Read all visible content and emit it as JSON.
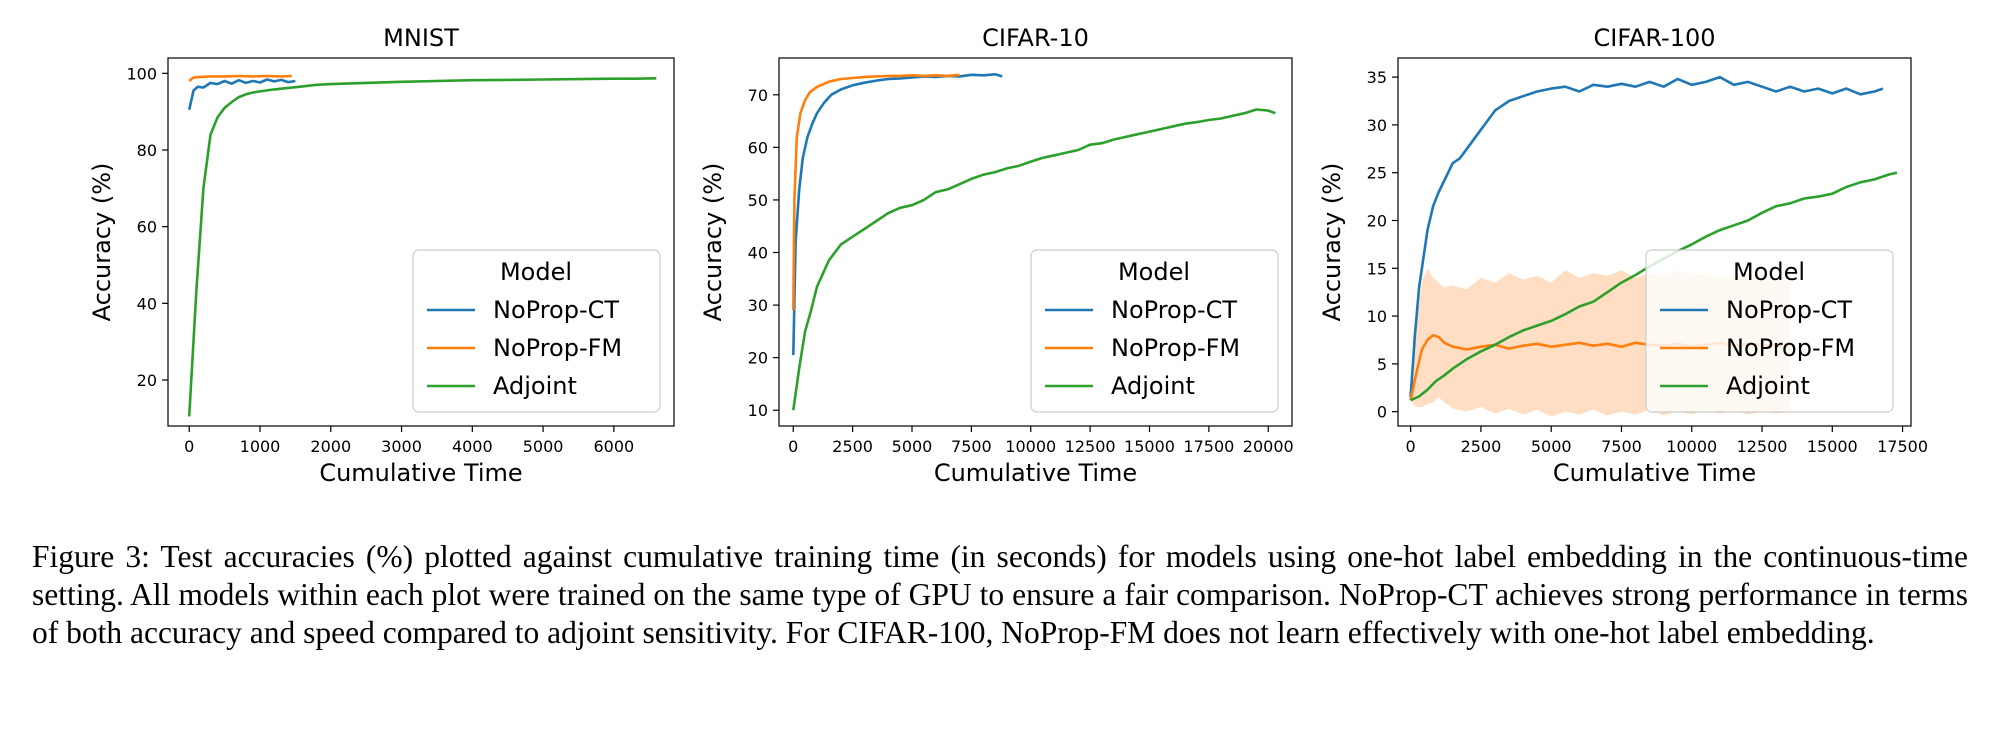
{
  "figure": {
    "caption_label": "Figure 3:",
    "caption_text": "Test accuracies (%) plotted against cumulative training time (in seconds) for models using one-hot label embedding in the continuous-time setting. All models within each plot were trained on the same type of GPU to ensure a fair comparison. NoProp-CT achieves strong performance in terms of both accuracy and speed compared to adjoint sensitivity. For CIFAR-100, NoProp-FM does not learn effectively with one-hot label embedding."
  },
  "colors": {
    "ct": "#1f77b4",
    "fm": "#ff7f0e",
    "adj": "#2ca02c",
    "fm_band": "#ffd8b8",
    "ct_band": "#b7d6ee",
    "adj_band": "#a8dca8"
  },
  "chart_data": [
    {
      "type": "line",
      "title": "MNIST",
      "xlabel": "Cumulative Time",
      "ylabel": "Accuracy (%)",
      "xlim": [
        -300,
        6850
      ],
      "ylim": [
        8,
        104
      ],
      "xticks": [
        0,
        1000,
        2000,
        3000,
        4000,
        5000,
        6000
      ],
      "xtick_labels": [
        "0",
        "1000",
        "2000",
        "3000",
        "4000",
        "5000",
        "6000"
      ],
      "yticks": [
        20,
        40,
        60,
        80,
        100
      ],
      "ytick_labels": [
        "20",
        "40",
        "60",
        "80",
        "100"
      ],
      "legend": {
        "title": "Model",
        "position": "lower-right",
        "entries": [
          "NoProp-CT",
          "NoProp-FM",
          "Adjoint"
        ]
      },
      "series": [
        {
          "name": "NoProp-CT",
          "color": "ct",
          "x": [
            0,
            60,
            120,
            200,
            300,
            400,
            500,
            600,
            700,
            800,
            900,
            1000,
            1100,
            1200,
            1300,
            1400,
            1500
          ],
          "y": [
            90.5,
            95.5,
            96.5,
            96.3,
            97.5,
            97.2,
            98.0,
            97.3,
            98.2,
            97.5,
            98.0,
            97.6,
            98.4,
            97.9,
            98.3,
            97.7,
            98.0
          ]
        },
        {
          "name": "NoProp-FM",
          "color": "fm",
          "x": [
            0,
            50,
            100,
            200,
            300,
            500,
            700,
            900,
            1100,
            1300,
            1450
          ],
          "y": [
            98.0,
            98.8,
            99.0,
            99.1,
            99.2,
            99.2,
            99.3,
            99.2,
            99.3,
            99.2,
            99.3
          ]
        },
        {
          "name": "Adjoint",
          "color": "adj",
          "x": [
            0,
            100,
            200,
            300,
            400,
            500,
            600,
            700,
            800,
            900,
            1000,
            1200,
            1400,
            1600,
            1800,
            2000,
            2500,
            3000,
            3500,
            4000,
            4500,
            5000,
            5500,
            6000,
            6300,
            6600
          ],
          "y": [
            10.5,
            43,
            70,
            84,
            88.5,
            91,
            92.5,
            93.8,
            94.5,
            95,
            95.3,
            95.8,
            96.2,
            96.6,
            97,
            97.2,
            97.5,
            97.8,
            98,
            98.2,
            98.3,
            98.4,
            98.5,
            98.6,
            98.6,
            98.7
          ]
        }
      ]
    },
    {
      "type": "line",
      "title": "CIFAR-10",
      "xlabel": "Cumulative Time",
      "ylabel": "Accuracy (%)",
      "xlim": [
        -600,
        21000
      ],
      "ylim": [
        7,
        77
      ],
      "xticks": [
        0,
        2500,
        5000,
        7500,
        10000,
        12500,
        15000,
        17500,
        20000
      ],
      "xtick_labels": [
        "0",
        "2500",
        "5000",
        "7500",
        "10000",
        "12500",
        "15000",
        "17500",
        "20000"
      ],
      "yticks": [
        10,
        20,
        30,
        40,
        50,
        60,
        70
      ],
      "ytick_labels": [
        "10",
        "20",
        "30",
        "40",
        "50",
        "60",
        "70"
      ],
      "legend": {
        "title": "Model",
        "position": "lower-right",
        "entries": [
          "NoProp-CT",
          "NoProp-FM",
          "Adjoint"
        ]
      },
      "series": [
        {
          "name": "NoProp-CT",
          "color": "ct",
          "x": [
            0,
            100,
            250,
            400,
            600,
            800,
            1000,
            1300,
            1600,
            2000,
            2500,
            3000,
            3500,
            4000,
            4500,
            5000,
            5500,
            6000,
            6500,
            7000,
            7500,
            8000,
            8500,
            8800
          ],
          "y": [
            20.5,
            42,
            52,
            58,
            62,
            64.5,
            66.5,
            68.5,
            70,
            71,
            71.8,
            72.3,
            72.7,
            73,
            73.1,
            73.3,
            73.5,
            73.4,
            73.6,
            73.5,
            73.8,
            73.7,
            73.9,
            73.5
          ]
        },
        {
          "name": "NoProp-FM",
          "color": "fm",
          "x": [
            0,
            50,
            150,
            300,
            500,
            700,
            1000,
            1500,
            2000,
            2500,
            3000,
            3500,
            4000,
            4500,
            5000,
            5500,
            6000,
            6500,
            7000
          ],
          "y": [
            29,
            50,
            62,
            66.5,
            69,
            70.5,
            71.5,
            72.5,
            73,
            73.2,
            73.4,
            73.5,
            73.6,
            73.6,
            73.7,
            73.6,
            73.7,
            73.6,
            73.8
          ]
        },
        {
          "name": "Adjoint",
          "color": "adj",
          "x": [
            0,
            250,
            500,
            750,
            1000,
            1500,
            2000,
            2500,
            3000,
            3500,
            4000,
            4500,
            5000,
            5500,
            6000,
            6500,
            7000,
            7500,
            8000,
            8500,
            9000,
            9500,
            10000,
            10500,
            11000,
            11500,
            12000,
            12500,
            13000,
            13500,
            14000,
            14500,
            15000,
            15500,
            16000,
            16500,
            17000,
            17500,
            18000,
            18500,
            19000,
            19500,
            20000,
            20300
          ],
          "y": [
            10,
            18,
            25,
            29,
            33.5,
            38.5,
            41.5,
            43,
            44.5,
            46,
            47.5,
            48.5,
            49,
            50,
            51.5,
            52,
            53,
            54,
            54.8,
            55.3,
            56,
            56.5,
            57.3,
            58,
            58.5,
            59,
            59.5,
            60.5,
            60.8,
            61.5,
            62,
            62.5,
            63,
            63.5,
            64,
            64.5,
            64.8,
            65.2,
            65.5,
            66,
            66.5,
            67.2,
            67,
            66.5
          ]
        }
      ]
    },
    {
      "type": "line",
      "title": "CIFAR-100",
      "xlabel": "Cumulative Time",
      "ylabel": "Accuracy (%)",
      "xlim": [
        -450,
        17800
      ],
      "ylim": [
        -1.5,
        37
      ],
      "xticks": [
        0,
        2500,
        5000,
        7500,
        10000,
        12500,
        15000,
        17500
      ],
      "xtick_labels": [
        "0",
        "2500",
        "5000",
        "7500",
        "10000",
        "12500",
        "15000",
        "17500"
      ],
      "yticks": [
        0,
        5,
        10,
        15,
        20,
        25,
        30,
        35
      ],
      "ytick_labels": [
        "0",
        "5",
        "10",
        "15",
        "20",
        "25",
        "30",
        "35"
      ],
      "legend": {
        "title": "Model",
        "position": "center-right",
        "entries": [
          "NoProp-CT",
          "NoProp-FM",
          "Adjoint"
        ]
      },
      "series": [
        {
          "name": "NoProp-CT",
          "color": "ct",
          "x": [
            0,
            150,
            300,
            450,
            600,
            800,
            1000,
            1250,
            1500,
            1750,
            2000,
            2250,
            2500,
            2750,
            3000,
            3500,
            4000,
            4500,
            5000,
            5500,
            6000,
            6500,
            7000,
            7500,
            8000,
            8500,
            9000,
            9500,
            10000,
            10500,
            11000,
            11500,
            12000,
            12500,
            13000,
            13500,
            14000,
            14500,
            15000,
            15500,
            16000,
            16500,
            16800
          ],
          "y": [
            1.5,
            8,
            13,
            16,
            19,
            21.5,
            23,
            24.5,
            26,
            26.5,
            27.5,
            28.5,
            29.5,
            30.5,
            31.5,
            32.5,
            33,
            33.5,
            33.8,
            34,
            33.5,
            34.2,
            34,
            34.3,
            34,
            34.5,
            34,
            34.8,
            34.2,
            34.5,
            35,
            34.2,
            34.5,
            34,
            33.5,
            34,
            33.5,
            33.8,
            33.3,
            33.8,
            33.2,
            33.5,
            33.8
          ]
        },
        {
          "name": "NoProp-FM",
          "color": "fm",
          "x": [
            0,
            200,
            400,
            600,
            800,
            1000,
            1200,
            1500,
            2000,
            2500,
            3000,
            3500,
            4000,
            4500,
            5000,
            5500,
            6000,
            6500,
            7000,
            7500,
            8000,
            8500,
            9000,
            9500,
            10000,
            10500,
            11000,
            11500,
            12000,
            12500,
            13000,
            13500
          ],
          "y": [
            1.2,
            4,
            6.5,
            7.5,
            8,
            7.8,
            7.2,
            6.8,
            6.5,
            6.8,
            7,
            6.6,
            6.9,
            7.1,
            6.8,
            7,
            7.2,
            6.9,
            7.1,
            6.8,
            7.2,
            7,
            6.9,
            7.1,
            6.8,
            7,
            7.2,
            6.9,
            7.1,
            7,
            6.9,
            7
          ]
        },
        {
          "name": "Adjoint",
          "color": "adj",
          "x": [
            0,
            300,
            600,
            900,
            1200,
            1500,
            2000,
            2500,
            3000,
            3500,
            4000,
            4500,
            5000,
            5500,
            6000,
            6500,
            7000,
            7500,
            8000,
            8500,
            9000,
            9500,
            10000,
            10500,
            11000,
            11500,
            12000,
            12500,
            13000,
            13500,
            14000,
            14500,
            15000,
            15500,
            16000,
            16500,
            17000,
            17300
          ],
          "y": [
            1.2,
            1.6,
            2.3,
            3.2,
            3.8,
            4.5,
            5.5,
            6.3,
            7,
            7.8,
            8.5,
            9,
            9.5,
            10.2,
            11,
            11.5,
            12.5,
            13.5,
            14.3,
            15.2,
            16,
            16.8,
            17.5,
            18.3,
            19,
            19.5,
            20,
            20.8,
            21.5,
            21.8,
            22.3,
            22.5,
            22.8,
            23.5,
            24,
            24.3,
            24.8,
            25
          ]
        }
      ],
      "bands": [
        {
          "name": "NoProp-FM",
          "color": "fm_band",
          "x": [
            0,
            200,
            400,
            600,
            800,
            1000,
            1200,
            1500,
            2000,
            2500,
            3000,
            3500,
            4000,
            4500,
            5000,
            5500,
            6000,
            6500,
            7000,
            7500,
            8000,
            8500,
            9000,
            9500,
            10000,
            10500,
            11000,
            11500,
            12000,
            12500,
            13000,
            13500
          ],
          "upper": [
            1.3,
            9,
            13.5,
            15,
            14,
            13.5,
            13,
            13.2,
            12.8,
            14,
            13.5,
            14.5,
            13.8,
            14.2,
            13.5,
            14.8,
            14,
            14.5,
            14.2,
            14.8,
            14,
            14.5,
            14.2,
            14.8,
            14.2,
            14.6,
            14,
            14.3,
            14.5,
            14.2,
            13.8,
            14.3
          ],
          "lower": [
            1.1,
            0.5,
            0.5,
            0.8,
            1,
            1.5,
            1,
            0.3,
            0,
            0.5,
            -0.2,
            0.3,
            -0.3,
            0.2,
            -0.5,
            0,
            -0.3,
            0.2,
            -0.4,
            0,
            -0.3,
            0.2,
            -0.4,
            0,
            -0.3,
            0.2,
            -0.2,
            0.1,
            -0.3,
            0,
            -0.2,
            0
          ]
        }
      ]
    }
  ]
}
